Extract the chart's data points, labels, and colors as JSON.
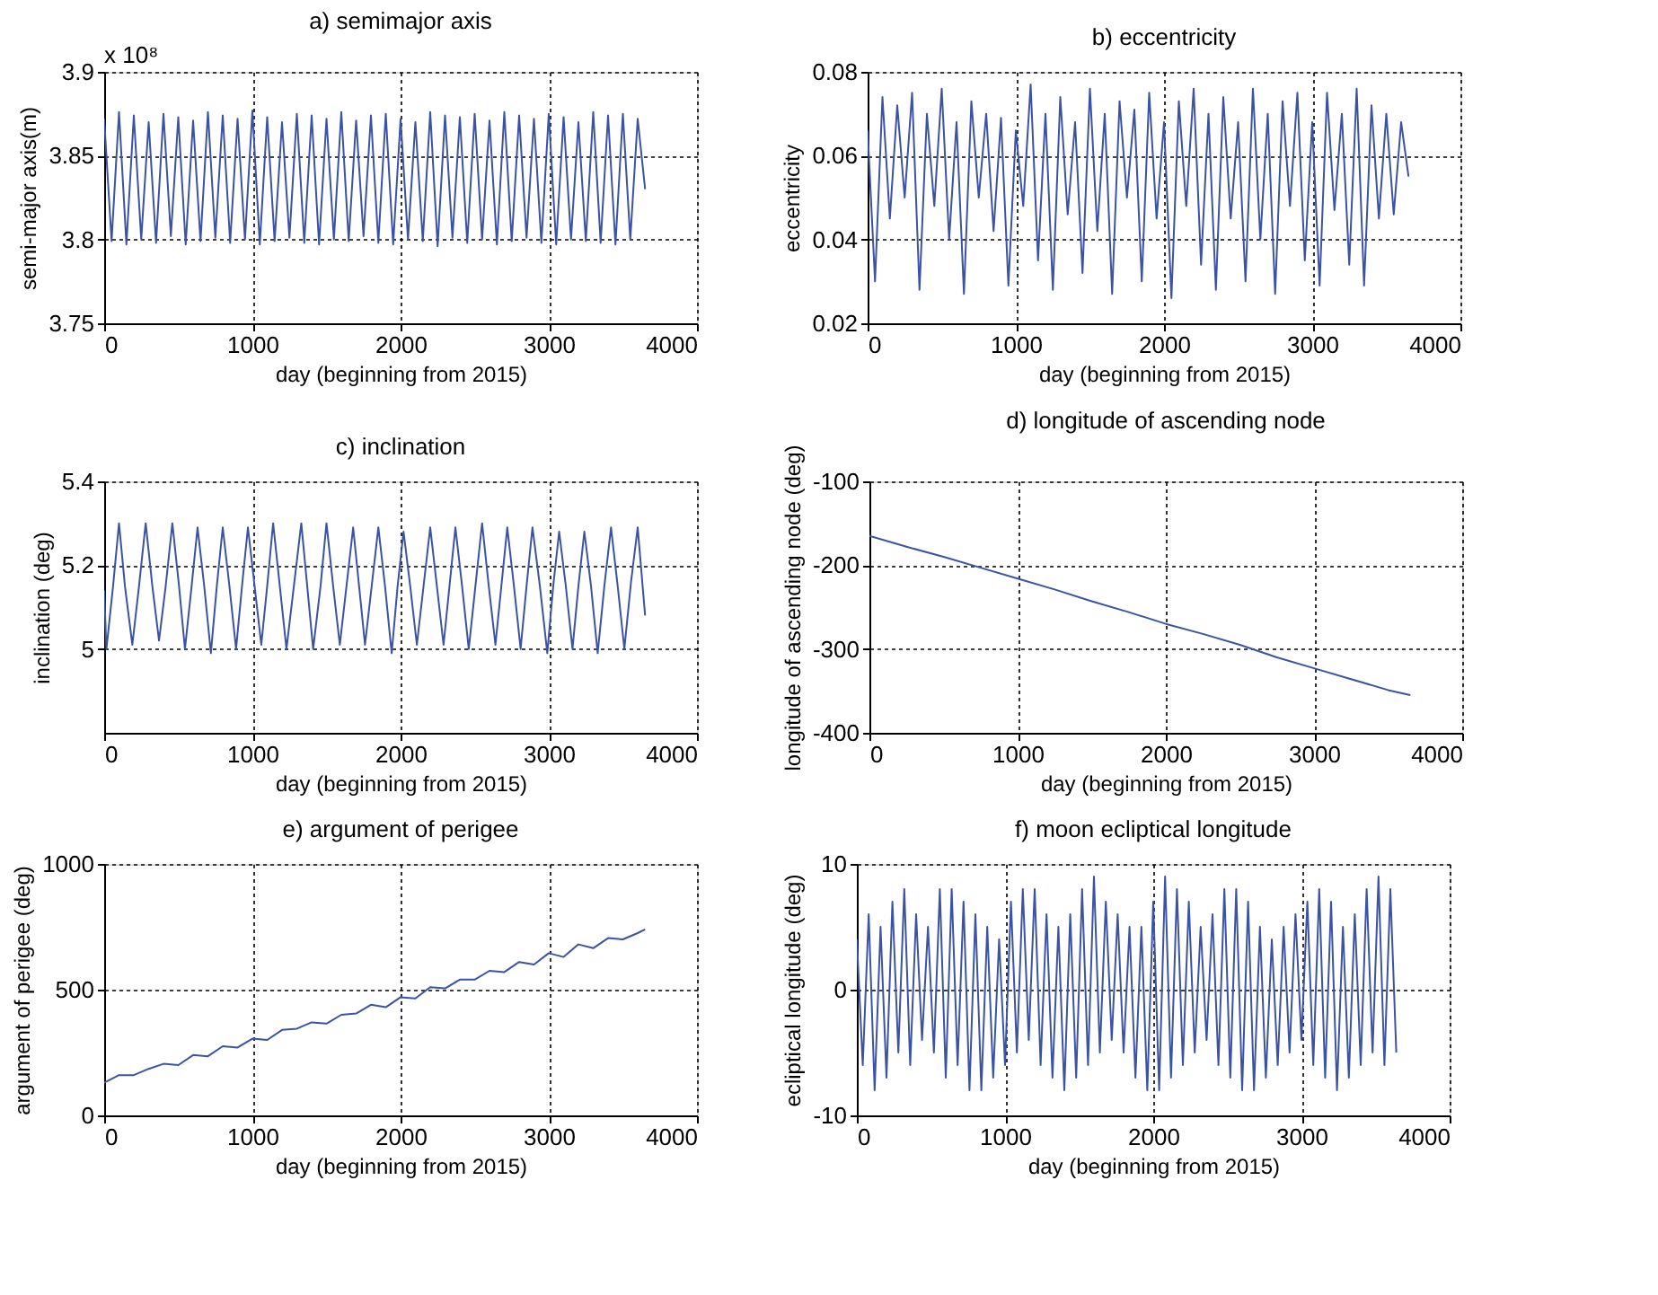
{
  "chart_data": [
    {
      "type": "line",
      "title": "a) semimajor axis",
      "xlabel": "day (beginning from 2015)",
      "ylabel": "semi-major axis(m)",
      "color": "#3a53a4",
      "grid": true,
      "annotations": [
        "x 10⁸"
      ],
      "xlim": [
        0,
        4000
      ],
      "xticks": [
        0,
        1000,
        2000,
        3000,
        4000
      ],
      "ylim": [
        3.75,
        3.9
      ],
      "yticks": [
        3.75,
        3.8,
        3.85,
        3.9
      ],
      "x": [
        0,
        50,
        100,
        150,
        200,
        250,
        300,
        350,
        400,
        450,
        500,
        550,
        600,
        650,
        700,
        750,
        800,
        850,
        900,
        950,
        1000,
        1050,
        1100,
        1150,
        1200,
        1250,
        1300,
        1350,
        1400,
        1450,
        1500,
        1550,
        1600,
        1650,
        1700,
        1750,
        1800,
        1850,
        1900,
        1950,
        2000,
        2050,
        2100,
        2150,
        2200,
        2250,
        2300,
        2350,
        2400,
        2450,
        2500,
        2550,
        2600,
        2650,
        2700,
        2750,
        2800,
        2850,
        2900,
        2950,
        3000,
        3050,
        3100,
        3150,
        3200,
        3250,
        3300,
        3350,
        3400,
        3450,
        3500,
        3550,
        3600,
        3650
      ],
      "values": [
        3.872,
        3.799,
        3.876,
        3.797,
        3.874,
        3.8,
        3.87,
        3.798,
        3.875,
        3.802,
        3.873,
        3.797,
        3.871,
        3.799,
        3.876,
        3.801,
        3.874,
        3.798,
        3.872,
        3.8,
        3.877,
        3.797,
        3.873,
        3.799,
        3.87,
        3.801,
        3.875,
        3.798,
        3.874,
        3.797,
        3.872,
        3.8,
        3.876,
        3.799,
        3.871,
        3.802,
        3.874,
        3.798,
        3.875,
        3.797,
        3.872,
        3.8,
        3.87,
        3.799,
        3.876,
        3.796,
        3.874,
        3.801,
        3.873,
        3.798,
        3.875,
        3.8,
        3.871,
        3.797,
        3.876,
        3.799,
        3.874,
        3.801,
        3.872,
        3.798,
        3.875,
        3.797,
        3.873,
        3.8,
        3.87,
        3.799,
        3.876,
        3.798,
        3.874,
        3.797,
        3.875,
        3.8,
        3.872,
        3.83
      ]
    },
    {
      "type": "line",
      "title": "b) eccentricity",
      "xlabel": "day (beginning from 2015)",
      "ylabel": "eccentricity",
      "color": "#3a53a4",
      "grid": true,
      "xlim": [
        0,
        4000
      ],
      "xticks": [
        0,
        1000,
        2000,
        3000,
        4000
      ],
      "ylim": [
        0.02,
        0.08
      ],
      "yticks": [
        0.02,
        0.04,
        0.06,
        0.08
      ],
      "x": [
        0,
        50,
        100,
        150,
        200,
        250,
        300,
        350,
        400,
        450,
        500,
        550,
        600,
        650,
        700,
        750,
        800,
        850,
        900,
        950,
        1000,
        1050,
        1100,
        1150,
        1200,
        1250,
        1300,
        1350,
        1400,
        1450,
        1500,
        1550,
        1600,
        1650,
        1700,
        1750,
        1800,
        1850,
        1900,
        1950,
        2000,
        2050,
        2100,
        2150,
        2200,
        2250,
        2300,
        2350,
        2400,
        2450,
        2500,
        2550,
        2600,
        2650,
        2700,
        2750,
        2800,
        2850,
        2900,
        2950,
        3000,
        3050,
        3100,
        3150,
        3200,
        3250,
        3300,
        3350,
        3400,
        3450,
        3500,
        3550,
        3600,
        3650
      ],
      "values": [
        0.066,
        0.03,
        0.074,
        0.045,
        0.072,
        0.05,
        0.075,
        0.028,
        0.07,
        0.048,
        0.076,
        0.04,
        0.068,
        0.027,
        0.073,
        0.05,
        0.07,
        0.042,
        0.069,
        0.029,
        0.066,
        0.048,
        0.077,
        0.035,
        0.07,
        0.028,
        0.074,
        0.046,
        0.068,
        0.032,
        0.076,
        0.042,
        0.07,
        0.027,
        0.073,
        0.05,
        0.071,
        0.03,
        0.075,
        0.045,
        0.068,
        0.026,
        0.073,
        0.048,
        0.076,
        0.034,
        0.07,
        0.028,
        0.074,
        0.045,
        0.068,
        0.03,
        0.076,
        0.04,
        0.07,
        0.027,
        0.073,
        0.048,
        0.075,
        0.035,
        0.068,
        0.029,
        0.075,
        0.047,
        0.07,
        0.034,
        0.076,
        0.029,
        0.072,
        0.045,
        0.07,
        0.046,
        0.068,
        0.055
      ]
    },
    {
      "type": "line",
      "title": "c) inclination",
      "xlabel": "day (beginning from 2015)",
      "ylabel": "inclination (deg)",
      "color": "#3a53a4",
      "grid": true,
      "xlim": [
        0,
        4000
      ],
      "xticks": [
        0,
        1000,
        2000,
        3000,
        4000
      ],
      "ylim": [
        4.8,
        5.4
      ],
      "yticks": [
        5,
        5.2,
        5.4
      ],
      "x": [
        0,
        15,
        60,
        100,
        140,
        190,
        235,
        280,
        325,
        370,
        415,
        460,
        505,
        545,
        590,
        630,
        675,
        720,
        760,
        800,
        845,
        890,
        930,
        970,
        1015,
        1060,
        1100,
        1140,
        1185,
        1230,
        1280,
        1330,
        1370,
        1410,
        1460,
        1500,
        1545,
        1590,
        1635,
        1680,
        1720,
        1760,
        1805,
        1850,
        1895,
        1940,
        1980,
        2020,
        2065,
        2110,
        2155,
        2200,
        2245,
        2290,
        2330,
        2370,
        2415,
        2460,
        2505,
        2550,
        2595,
        2640,
        2680,
        2720,
        2765,
        2810,
        2850,
        2890,
        2940,
        2990,
        3030,
        3070,
        3115,
        3160,
        3200,
        3240,
        3285,
        3330,
        3375,
        3420,
        3465,
        3510,
        3555,
        3600,
        3650
      ],
      "values": [
        5.14,
        5.0,
        5.15,
        5.3,
        5.15,
        5.01,
        5.15,
        5.3,
        5.15,
        5.02,
        5.15,
        5.3,
        5.15,
        5.0,
        5.15,
        5.29,
        5.15,
        4.99,
        5.15,
        5.29,
        5.15,
        5.0,
        5.15,
        5.29,
        5.15,
        5.01,
        5.15,
        5.3,
        5.15,
        5.0,
        5.15,
        5.3,
        5.15,
        5.0,
        5.15,
        5.3,
        5.15,
        5.01,
        5.15,
        5.29,
        5.15,
        5.01,
        5.15,
        5.29,
        5.15,
        4.99,
        5.15,
        5.28,
        5.15,
        5.01,
        5.15,
        5.29,
        5.15,
        5.01,
        5.15,
        5.29,
        5.15,
        5.0,
        5.15,
        5.3,
        5.15,
        5.01,
        5.15,
        5.29,
        5.15,
        5.0,
        5.15,
        5.29,
        5.15,
        4.99,
        5.15,
        5.28,
        5.15,
        5.0,
        5.15,
        5.28,
        5.15,
        4.99,
        5.15,
        5.29,
        5.15,
        5.0,
        5.16,
        5.29,
        5.08
      ]
    },
    {
      "type": "line",
      "title": "d) longitude of ascending node",
      "xlabel": "day (beginning from 2015)",
      "ylabel": "longitude of ascending node (deg)",
      "color": "#3a53a4",
      "grid": true,
      "xlim": [
        0,
        4000
      ],
      "xticks": [
        0,
        1000,
        2000,
        3000,
        4000
      ],
      "ylim": [
        -400,
        -100
      ],
      "yticks": [
        -400,
        -300,
        -200,
        -100
      ],
      "x": [
        0,
        250,
        500,
        750,
        1000,
        1250,
        1500,
        1750,
        2000,
        2250,
        2500,
        2750,
        3000,
        3250,
        3500,
        3650
      ],
      "values": [
        -165,
        -178,
        -190,
        -203,
        -216,
        -229,
        -243,
        -256,
        -270,
        -282,
        -295,
        -310,
        -323,
        -336,
        -349,
        -355
      ]
    },
    {
      "type": "line",
      "title": "e) argument of perigee",
      "xlabel": "day (beginning from 2015)",
      "ylabel": "argument of perigee (deg)",
      "color": "#3a53a4",
      "grid": true,
      "xlim": [
        0,
        4000
      ],
      "xticks": [
        0,
        1000,
        2000,
        3000,
        4000
      ],
      "ylim": [
        0,
        1000
      ],
      "yticks": [
        0,
        500,
        1000
      ],
      "x": [
        0,
        100,
        200,
        300,
        400,
        500,
        600,
        700,
        800,
        900,
        1000,
        1100,
        1200,
        1300,
        1400,
        1500,
        1600,
        1700,
        1800,
        1900,
        2000,
        2100,
        2200,
        2300,
        2400,
        2500,
        2600,
        2700,
        2800,
        2900,
        3000,
        3100,
        3200,
        3300,
        3400,
        3500,
        3600,
        3650
      ],
      "values": [
        130,
        160,
        160,
        185,
        205,
        200,
        240,
        235,
        275,
        270,
        305,
        300,
        340,
        345,
        370,
        365,
        400,
        405,
        440,
        430,
        470,
        465,
        510,
        505,
        540,
        540,
        575,
        570,
        610,
        600,
        645,
        630,
        680,
        665,
        705,
        700,
        725,
        740
      ]
    },
    {
      "type": "line",
      "title": "f) moon ecliptical longitude",
      "xlabel": "day (beginning from 2015)",
      "ylabel": "ecliptical longitude (deg)",
      "color": "#3a53a4",
      "grid": true,
      "xlim": [
        0,
        4000
      ],
      "xticks": [
        0,
        1000,
        2000,
        3000,
        4000
      ],
      "ylim": [
        -10,
        10
      ],
      "yticks": [
        -10,
        0,
        10
      ],
      "x": [
        0,
        40,
        80,
        120,
        160,
        200,
        240,
        280,
        320,
        360,
        400,
        440,
        480,
        520,
        560,
        600,
        640,
        680,
        720,
        760,
        800,
        840,
        880,
        920,
        960,
        1000,
        1040,
        1080,
        1120,
        1160,
        1200,
        1240,
        1280,
        1320,
        1360,
        1400,
        1440,
        1480,
        1520,
        1560,
        1600,
        1640,
        1680,
        1720,
        1760,
        1800,
        1840,
        1880,
        1920,
        1960,
        2000,
        2040,
        2080,
        2120,
        2160,
        2200,
        2240,
        2280,
        2320,
        2360,
        2400,
        2440,
        2480,
        2520,
        2560,
        2600,
        2640,
        2680,
        2720,
        2760,
        2800,
        2840,
        2880,
        2920,
        2960,
        3000,
        3040,
        3080,
        3120,
        3160,
        3200,
        3240,
        3280,
        3320,
        3360,
        3400,
        3440,
        3480,
        3520,
        3560,
        3600,
        3640
      ],
      "values": [
        4,
        -6,
        6,
        -8,
        5,
        -7,
        7,
        -5,
        8,
        -6,
        6,
        -4,
        5,
        -5,
        8,
        -7,
        8,
        -6,
        7,
        -8,
        6,
        -8,
        5,
        -7,
        4,
        -6,
        7,
        -5,
        8,
        -4,
        8,
        -6,
        6,
        -7,
        5,
        -8,
        6,
        -7,
        8,
        -6,
        9,
        -5,
        7,
        -4,
        6,
        -5,
        5,
        -7,
        5,
        -8,
        7,
        -8,
        9,
        -7,
        8,
        -6,
        7,
        -5,
        5,
        -4,
        6,
        -6,
        8,
        -7,
        8,
        -8,
        7,
        -8,
        5,
        -7,
        4,
        -6,
        5,
        -5,
        6,
        -4,
        7,
        -6,
        8,
        -7,
        7,
        -8,
        5,
        -7,
        6,
        -6,
        8,
        -5,
        9,
        -6,
        8,
        -5
      ]
    }
  ]
}
